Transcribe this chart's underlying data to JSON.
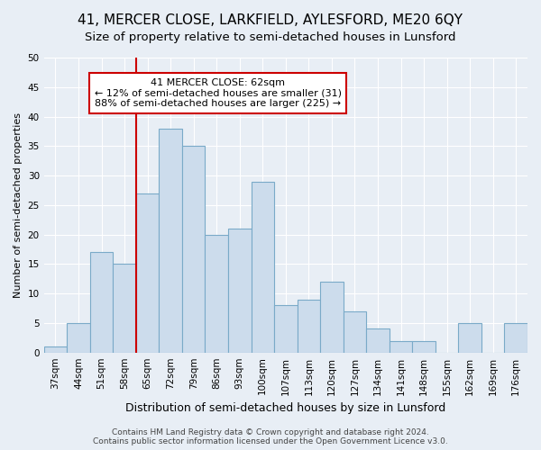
{
  "title": "41, MERCER CLOSE, LARKFIELD, AYLESFORD, ME20 6QY",
  "subtitle": "Size of property relative to semi-detached houses in Lunsford",
  "xlabel": "Distribution of semi-detached houses by size in Lunsford",
  "ylabel": "Number of semi-detached properties",
  "categories": [
    "37sqm",
    "44sqm",
    "51sqm",
    "58sqm",
    "65sqm",
    "72sqm",
    "79sqm",
    "86sqm",
    "93sqm",
    "100sqm",
    "107sqm",
    "113sqm",
    "120sqm",
    "127sqm",
    "134sqm",
    "141sqm",
    "148sqm",
    "155sqm",
    "162sqm",
    "169sqm",
    "176sqm"
  ],
  "values": [
    1,
    5,
    17,
    15,
    27,
    38,
    35,
    20,
    21,
    29,
    8,
    9,
    12,
    7,
    4,
    2,
    2,
    0,
    5,
    0,
    5
  ],
  "bar_color": "#ccdcec",
  "bar_edge_color": "#7aaac8",
  "property_line_x": 4.0,
  "annotation_text": "41 MERCER CLOSE: 62sqm\n← 12% of semi-detached houses are smaller (31)\n88% of semi-detached houses are larger (225) →",
  "annotation_box_color": "#ffffff",
  "annotation_box_edge": "#cc0000",
  "vline_color": "#cc0000",
  "ylim": [
    0,
    50
  ],
  "yticks": [
    0,
    5,
    10,
    15,
    20,
    25,
    30,
    35,
    40,
    45,
    50
  ],
  "background_color": "#e8eef5",
  "grid_color": "#ffffff",
  "footer_text": "Contains HM Land Registry data © Crown copyright and database right 2024.\nContains public sector information licensed under the Open Government Licence v3.0.",
  "title_fontsize": 11,
  "subtitle_fontsize": 9.5,
  "xlabel_fontsize": 9,
  "ylabel_fontsize": 8,
  "tick_fontsize": 7.5,
  "annotation_fontsize": 8,
  "footer_fontsize": 6.5
}
